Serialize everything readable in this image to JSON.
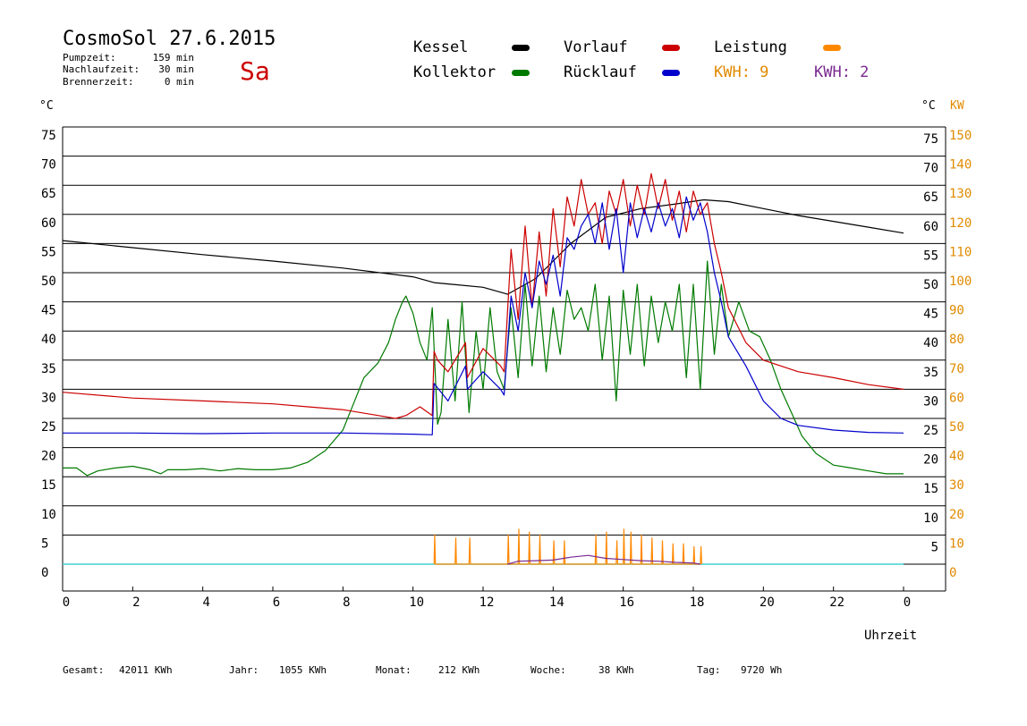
{
  "header": {
    "title": "CosmoSol 27.6.2015",
    "day": "Sa",
    "info": [
      {
        "label": "Pumpzeit:",
        "value": "159 min"
      },
      {
        "label": "Nachlaufzeit:",
        "value": "30 min"
      },
      {
        "label": "Brennerzeit:",
        "value": "0 min"
      }
    ]
  },
  "legend": {
    "kessel": "Kessel",
    "kollektor": "Kollektor",
    "vorlauf": "Vorlauf",
    "ruecklauf": "Rücklauf",
    "leistung": "Leistung",
    "kwh1": "KWH: 9",
    "kwh2": "KWH: 2"
  },
  "colors": {
    "kessel": "#000000",
    "kollektor": "#007a00",
    "vorlauf": "#cc0000",
    "ruecklauf": "#0000cc",
    "leistung": "#ff8800",
    "kwh1": "#e08a00",
    "kwh2": "#7a2a90",
    "zero_line": "#40d0d0"
  },
  "footer": [
    {
      "label": "Gesamt:",
      "value": "42011 KWh"
    },
    {
      "label": "Jahr:",
      "value": "1055 KWh"
    },
    {
      "label": "Monat:",
      "value": "212 KWh"
    },
    {
      "label": "Woche:",
      "value": "38 KWh"
    },
    {
      "label": "Tag:",
      "value": "9720 Wh"
    }
  ],
  "chart_data": {
    "type": "line",
    "title": "CosmoSol 27.6.2015",
    "xlabel": "Uhrzeit",
    "ylabel_left": "°C",
    "ylabel_right_temp": "°C",
    "ylabel_right_power": "KW",
    "xlim": [
      0,
      24
    ],
    "ylim": [
      0,
      75
    ],
    "y_left_ticks": [
      "75",
      "70",
      "65",
      "60",
      "55",
      "50",
      "45",
      "40",
      "35",
      "30",
      "25",
      "20",
      "15",
      "10",
      "5",
      "0"
    ],
    "y_right_temp_ticks": [
      "75",
      "70",
      "65",
      "60",
      "55",
      "50",
      "45",
      "40",
      "35",
      "30",
      "25",
      "20",
      "15",
      "10",
      "5"
    ],
    "y_right_kw_ticks": [
      "150",
      "140",
      "130",
      "120",
      "110",
      "100",
      "90",
      "80",
      "70",
      "60",
      "50",
      "40",
      "30",
      "20",
      "10",
      "0"
    ],
    "x_ticks": [
      "0",
      "2",
      "4",
      "6",
      "8",
      "10",
      "12",
      "14",
      "16",
      "18",
      "20",
      "22",
      "0"
    ],
    "grid": true,
    "series": [
      {
        "name": "Kessel",
        "key": "kessel",
        "x": [
          0,
          2,
          4,
          6,
          8,
          10,
          10.6,
          12,
          12.7,
          13.5,
          14.5,
          15.5,
          16.5,
          17.5,
          18.3,
          19,
          20,
          21,
          22,
          23,
          24
        ],
        "y": [
          55.5,
          54.3,
          53.1,
          52,
          50.8,
          49.3,
          48.3,
          47.5,
          46.3,
          49,
          55,
          59.5,
          61,
          61.8,
          62.5,
          62.2,
          61,
          59.8,
          58.8,
          57.8,
          56.8
        ]
      },
      {
        "name": "Kollektor",
        "key": "kollektor",
        "x": [
          0,
          0.4,
          0.7,
          1,
          1.5,
          2,
          2.5,
          2.8,
          3,
          3.5,
          4,
          4.5,
          5,
          5.5,
          6,
          6.5,
          7,
          7.5,
          8,
          8.3,
          8.6,
          9,
          9.3,
          9.5,
          9.7,
          9.8,
          10,
          10.2,
          10.4,
          10.55,
          10.7,
          10.8,
          11,
          11.2,
          11.4,
          11.6,
          11.8,
          12,
          12.2,
          12.4,
          12.6,
          12.8,
          13,
          13.2,
          13.4,
          13.6,
          13.8,
          14,
          14.2,
          14.4,
          14.6,
          14.8,
          15,
          15.2,
          15.4,
          15.6,
          15.8,
          16,
          16.2,
          16.4,
          16.6,
          16.8,
          17,
          17.2,
          17.4,
          17.6,
          17.8,
          18,
          18.2,
          18.4,
          18.6,
          18.8,
          19,
          19.3,
          19.6,
          19.9,
          20.2,
          20.5,
          20.8,
          21.1,
          21.5,
          22,
          22.5,
          23,
          23.5,
          24
        ],
        "y": [
          16.5,
          16.5,
          15.2,
          16,
          16.5,
          16.8,
          16.2,
          15.5,
          16.2,
          16.2,
          16.4,
          16,
          16.4,
          16.2,
          16.2,
          16.5,
          17.5,
          19.5,
          23,
          27.5,
          32,
          34.5,
          38,
          42,
          45,
          46,
          43,
          38,
          35,
          44,
          24,
          26,
          42,
          28,
          45,
          26,
          40,
          30,
          44,
          33,
          30,
          44,
          32,
          48,
          34,
          46,
          33,
          44,
          36,
          47,
          42,
          44,
          40,
          48,
          35,
          46,
          28,
          47,
          36,
          48,
          34,
          46,
          38,
          45,
          40,
          48,
          32,
          48,
          30,
          52,
          36,
          48,
          39,
          45,
          40,
          39,
          35,
          30,
          26,
          22,
          19,
          17,
          16.5,
          16,
          15.5,
          15.5
        ]
      },
      {
        "name": "Vorlauf",
        "key": "vorlauf",
        "x": [
          0,
          2,
          4,
          6,
          7,
          8,
          9,
          9.5,
          9.8,
          10.2,
          10.55,
          10.6,
          10.7,
          11,
          11.5,
          11.55,
          12,
          12.5,
          12.6,
          12.8,
          13,
          13.2,
          13.4,
          13.6,
          13.8,
          14,
          14.2,
          14.4,
          14.6,
          14.8,
          15,
          15.2,
          15.4,
          15.6,
          15.8,
          16,
          16.2,
          16.4,
          16.6,
          16.8,
          17,
          17.2,
          17.4,
          17.6,
          17.8,
          18,
          18.2,
          18.4,
          18.6,
          18.8,
          19,
          19.5,
          20,
          21,
          22,
          23,
          24
        ],
        "y": [
          29.5,
          28.5,
          28,
          27.5,
          27,
          26.5,
          25.5,
          25,
          25.5,
          27,
          25.5,
          36.5,
          35,
          33,
          38,
          32,
          37,
          34,
          33,
          54,
          42,
          58,
          44,
          57,
          46,
          61,
          51,
          63,
          58,
          66,
          60,
          62,
          55,
          64,
          60,
          66,
          58,
          65,
          60,
          67,
          61,
          66,
          59,
          64,
          57,
          64,
          60,
          62,
          55,
          50,
          44,
          38,
          35,
          33,
          32,
          30.8,
          30
        ]
      },
      {
        "name": "Rücklauf",
        "key": "ruecklauf",
        "x": [
          0,
          2,
          4,
          6,
          8,
          10,
          10.55,
          10.6,
          11,
          11.5,
          11.55,
          12,
          12.5,
          12.6,
          12.8,
          13,
          13.2,
          13.4,
          13.6,
          13.8,
          14,
          14.2,
          14.4,
          14.6,
          14.8,
          15,
          15.2,
          15.4,
          15.6,
          15.8,
          16,
          16.2,
          16.4,
          16.6,
          16.8,
          17,
          17.2,
          17.4,
          17.6,
          17.8,
          18,
          18.2,
          18.4,
          18.6,
          18.8,
          19,
          19.5,
          20,
          20.5,
          21,
          22,
          23,
          24
        ],
        "y": [
          22.5,
          22.5,
          22.4,
          22.5,
          22.5,
          22.3,
          22.2,
          31,
          28,
          34,
          30,
          33,
          30,
          29,
          46,
          40,
          50,
          44,
          52,
          48,
          53,
          46,
          56,
          54,
          58,
          60,
          55,
          62,
          54,
          61,
          50,
          62,
          56,
          61,
          57,
          62,
          58,
          61,
          56,
          63,
          59,
          62,
          57,
          50,
          45,
          39,
          34,
          28,
          25,
          23.8,
          23,
          22.6,
          22.5
        ]
      },
      {
        "name": "Leistung",
        "key": "leistung",
        "x": [
          10.6,
          10.62,
          10.64,
          11.2,
          11.22,
          11.24,
          11.6,
          11.62,
          11.64,
          12.7,
          12.72,
          12.74,
          13.0,
          13.02,
          13.04,
          13.3,
          13.32,
          13.34,
          13.6,
          13.62,
          13.64,
          14.0,
          14.02,
          14.04,
          14.3,
          14.32,
          14.34,
          15.2,
          15.22,
          15.24,
          15.5,
          15.52,
          15.54,
          15.8,
          15.82,
          15.84,
          16.0,
          16.02,
          16.04,
          16.2,
          16.22,
          16.24,
          16.5,
          16.52,
          16.54,
          16.8,
          16.82,
          16.84,
          17.1,
          17.12,
          17.14,
          17.4,
          17.42,
          17.44,
          17.7,
          17.72,
          17.74,
          18.0,
          18.02,
          18.04,
          18.2,
          18.22,
          18.24
        ],
        "y": [
          0,
          5,
          0,
          0,
          4.5,
          0,
          0,
          4.5,
          0,
          0,
          5,
          0,
          0,
          6,
          0,
          0,
          5.5,
          0,
          0,
          5,
          0,
          0,
          4,
          0,
          0,
          4,
          0,
          0,
          5,
          0,
          0,
          5.5,
          0,
          0,
          4,
          0,
          0,
          6,
          0,
          0,
          5.5,
          0,
          0,
          5,
          0,
          0,
          4.5,
          0,
          0,
          4,
          0,
          0,
          3.5,
          0,
          0,
          3.5,
          0,
          0,
          3,
          0,
          0,
          3,
          0
        ]
      },
      {
        "name": "KWH: 2",
        "key": "kwh2",
        "x": [
          12.7,
          13,
          13.5,
          14,
          14.5,
          15,
          15.5,
          16,
          16.5,
          17,
          17.5,
          18,
          18.2
        ],
        "y": [
          0,
          0.5,
          0.6,
          0.7,
          1.2,
          1.5,
          1,
          0.8,
          0.6,
          0.5,
          0.3,
          0.2,
          0
        ]
      }
    ]
  }
}
